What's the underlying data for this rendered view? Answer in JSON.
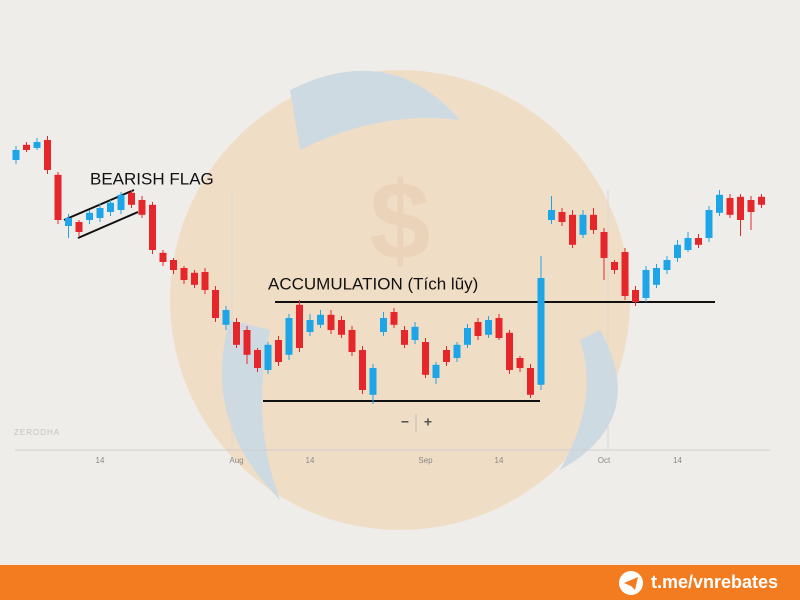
{
  "chart_data": {
    "type": "candlestick",
    "categories": [
      null,
      null,
      null,
      null,
      null,
      null,
      null,
      null,
      "14",
      null,
      null,
      null,
      null,
      null,
      null,
      null,
      null,
      null,
      null,
      null,
      null,
      "Aug",
      null,
      null,
      null,
      null,
      null,
      null,
      "14",
      null,
      null,
      null,
      null,
      null,
      null,
      null,
      null,
      null,
      null,
      "Sep",
      null,
      null,
      null,
      null,
      null,
      null,
      "14",
      null,
      null,
      null,
      null,
      null,
      null,
      null,
      null,
      null,
      "Oct",
      null,
      null,
      null,
      null,
      null,
      null,
      "14",
      null,
      null,
      null,
      null,
      null,
      null,
      null,
      null
    ],
    "open": [
      75,
      78.8,
      78,
      80,
      71.3,
      58.5,
      59.5,
      60,
      60.5,
      62,
      62.5,
      66.8,
      65,
      63.8,
      51.8,
      50,
      48,
      46.8,
      47,
      42.5,
      33.8,
      34.5,
      32.5,
      27.5,
      22.5,
      30,
      26.3,
      38.8,
      32,
      33.8,
      36.3,
      35,
      32.5,
      27.5,
      16.3,
      32,
      37,
      32.5,
      30,
      29.5,
      20.5,
      27.5,
      25.5,
      28.8,
      34.5,
      31.3,
      35.5,
      31.8,
      25.5,
      23,
      18.8,
      60,
      62,
      61.3,
      56.3,
      61.3,
      57,
      49.5,
      52,
      42.5,
      40.5,
      43.8,
      47.5,
      50.5,
      52.5,
      55.5,
      55.5,
      61.8,
      65.5,
      65.8,
      65,
      65.8
    ],
    "high": [
      78.5,
      79.5,
      80.5,
      81,
      72,
      61.5,
      60,
      62.5,
      64,
      65,
      67,
      67.5,
      66,
      64.5,
      52.5,
      50.5,
      48.5,
      47.5,
      48,
      43.5,
      38.5,
      35.5,
      33.5,
      28,
      29.5,
      31,
      36.5,
      40,
      36.5,
      37.5,
      37.5,
      36,
      33.5,
      28.5,
      24,
      37,
      38,
      33.5,
      34.5,
      30.5,
      24.5,
      28.5,
      29.5,
      34,
      35.5,
      36,
      36.5,
      32.5,
      26,
      24,
      51,
      66,
      63,
      62.5,
      62.5,
      63,
      58,
      50,
      53,
      43.5,
      48.5,
      49,
      51,
      55,
      57,
      56.5,
      63.5,
      67.5,
      66.5,
      66.5,
      66,
      66.5
    ],
    "low": [
      74,
      77,
      77.5,
      71.5,
      59,
      55.5,
      56,
      59,
      59.5,
      61,
      61.5,
      63,
      60.5,
      51.5,
      48.5,
      46.5,
      44,
      43,
      41.5,
      34.5,
      32.5,
      28,
      24,
      22,
      21.5,
      23.5,
      25,
      27,
      31,
      33,
      31.5,
      30.5,
      26,
      16.5,
      14,
      31,
      33,
      28,
      29,
      20.5,
      19,
      23.5,
      24.5,
      28,
      30,
      30.5,
      30,
      21.5,
      22,
      15.5,
      17.5,
      59,
      58.5,
      53,
      55.5,
      56.5,
      45,
      46.5,
      40,
      38.5,
      39.5,
      43,
      46.5,
      49.5,
      52,
      53,
      54.5,
      61,
      60.5,
      56,
      57.5,
      63
    ],
    "close": [
      77.5,
      77.5,
      79.5,
      72.5,
      60,
      60.5,
      57,
      61.8,
      63,
      64.3,
      66.3,
      63.8,
      61.3,
      52.5,
      49.5,
      47.5,
      45,
      43.8,
      42.5,
      35.5,
      37.5,
      28.8,
      26.3,
      23,
      28.8,
      24.5,
      35.5,
      28,
      35,
      36.3,
      32.5,
      31.3,
      27,
      17.5,
      23,
      35.5,
      33.8,
      28.8,
      33.3,
      21.3,
      23.8,
      24.5,
      28.8,
      33,
      31,
      35,
      30.5,
      22.5,
      23,
      16.3,
      45.5,
      62.5,
      59.5,
      53.8,
      61.3,
      57.5,
      50.5,
      47.5,
      41,
      39.5,
      47.5,
      48,
      50,
      53.8,
      55.5,
      53.8,
      62.5,
      66.3,
      61.3,
      60,
      62,
      63.8
    ],
    "up_color": "#1ea5e8",
    "down_color": "#e5262a",
    "ylim": [
      0,
      100
    ],
    "annotations": [
      "BEARISH FLAG",
      "ACCUMULATION (Tích lũy)"
    ],
    "watermark": "ZERODHA",
    "controls": [
      "−",
      "+"
    ]
  },
  "footer": {
    "link": "t.me/vnrebates"
  }
}
